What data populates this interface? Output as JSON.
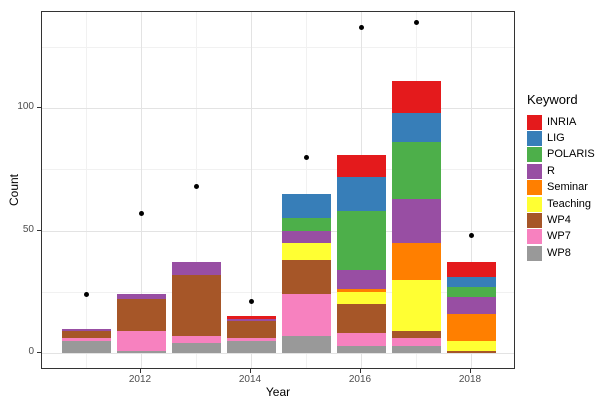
{
  "chart_data": {
    "type": "bar",
    "subtype": "stacked-bars-with-scatter-points",
    "title": "",
    "xlabel": "Year",
    "ylabel": "Count",
    "legend_title": "Keyword",
    "legend_position": "right",
    "grid": "on",
    "categories": [
      2011,
      2012,
      2013,
      2014,
      2015,
      2016,
      2017,
      2018
    ],
    "x_tick_labels": [
      "2012",
      "2014",
      "2016",
      "2018"
    ],
    "x_tick_years": [
      2012,
      2014,
      2016,
      2018
    ],
    "x_minor_years": [
      2011,
      2013,
      2015,
      2017
    ],
    "y_ticks": [
      0,
      50,
      100
    ],
    "y_tick_labels": [
      "0",
      "50",
      "100"
    ],
    "y_minor_ticks": [
      25,
      75,
      125
    ],
    "ylim": [
      -7,
      140
    ],
    "stack_order": "bottom-to-top",
    "series": [
      {
        "name": "WP8",
        "color": "#999999",
        "values": [
          5,
          1,
          4,
          5,
          7,
          3,
          3,
          0
        ]
      },
      {
        "name": "WP7",
        "color": "#F781BF",
        "values": [
          1,
          8,
          3,
          1,
          17,
          5,
          3,
          0
        ]
      },
      {
        "name": "WP4",
        "color": "#A65628",
        "values": [
          3,
          13,
          25,
          7,
          14,
          12,
          3,
          1
        ]
      },
      {
        "name": "Teaching",
        "color": "#FFFF33",
        "values": [
          0,
          0,
          0,
          0,
          7,
          5,
          21,
          4
        ]
      },
      {
        "name": "Seminar",
        "color": "#FF7F00",
        "values": [
          0,
          0,
          0,
          0,
          0,
          1,
          15,
          11
        ]
      },
      {
        "name": "R",
        "color": "#984EA3",
        "values": [
          1,
          2,
          5,
          1,
          5,
          8,
          18,
          7
        ]
      },
      {
        "name": "POLARIS",
        "color": "#4DAF4A",
        "values": [
          0,
          0,
          0,
          0,
          5,
          24,
          23,
          4
        ]
      },
      {
        "name": "LIG",
        "color": "#377EB8",
        "values": [
          0,
          0,
          0,
          0,
          10,
          14,
          12,
          4
        ]
      },
      {
        "name": "INRIA",
        "color": "#E41A1C",
        "values": [
          0,
          0,
          0,
          1,
          0,
          9,
          13,
          6
        ]
      }
    ],
    "bar_totals": [
      10,
      24,
      37,
      15,
      65,
      81,
      111,
      37
    ],
    "points": {
      "color": "#000000",
      "values": [
        24,
        57,
        68,
        21,
        80,
        133,
        135,
        48
      ]
    },
    "legend_order": [
      "INRIA",
      "LIG",
      "POLARIS",
      "R",
      "Seminar",
      "Teaching",
      "WP4",
      "WP7",
      "WP8"
    ],
    "colors": {
      "panel_background": "#FFFFFF",
      "panel_border": "#333333",
      "grid_major": "#E3E3E3",
      "grid_minor": "#F1F1F1",
      "tick_mark": "#333333",
      "tick_label": "#4D4D4D"
    }
  }
}
